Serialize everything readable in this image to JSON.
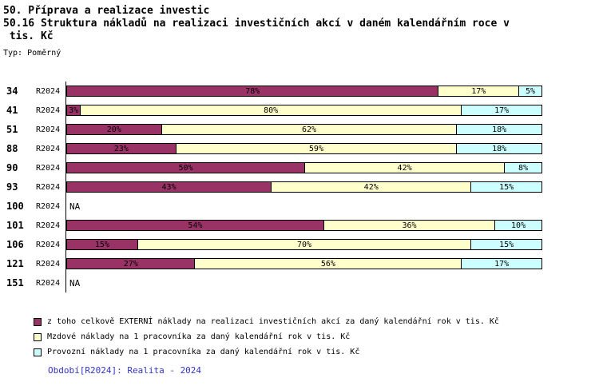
{
  "header": {
    "title1": "50. Příprava a realizace investic",
    "title2": "50.16 Struktura nákladů na realizaci investičních akcí v daném kalendářním roce v",
    "title3": " tis. Kč",
    "type_label": "Typ: Poměrný"
  },
  "chart_data": {
    "type": "bar",
    "orientation": "horizontal",
    "stacked": true,
    "unit": "%",
    "period": "R2024",
    "na_label": "NA",
    "categories": [
      "34",
      "41",
      "51",
      "88",
      "90",
      "93",
      "100",
      "101",
      "106",
      "121",
      "151"
    ],
    "series": [
      {
        "name": "z toho celkově EXTERNÍ náklady na realizaci investičních akcí za daný kalendářní rok v tis. Kč",
        "color": "#993366",
        "values": [
          78,
          3,
          20,
          23,
          50,
          43,
          null,
          54,
          15,
          27,
          null
        ]
      },
      {
        "name": "Mzdové náklady na 1 pracovníka za daný kalendářní rok v tis. Kč",
        "color": "#FFFFCC",
        "values": [
          17,
          80,
          62,
          59,
          42,
          42,
          null,
          36,
          70,
          56,
          null
        ]
      },
      {
        "name": "Provozní náklady na 1 pracovníka za daný kalendářní rok v tis. Kč",
        "color": "#CCFFFF",
        "values": [
          5,
          17,
          18,
          18,
          8,
          15,
          null,
          10,
          15,
          17,
          null
        ]
      }
    ],
    "legend_position": "bottom",
    "grid": false,
    "xlim": [
      0,
      100
    ]
  },
  "footer": {
    "text": "Období[R2024]: Realita - 2024"
  }
}
